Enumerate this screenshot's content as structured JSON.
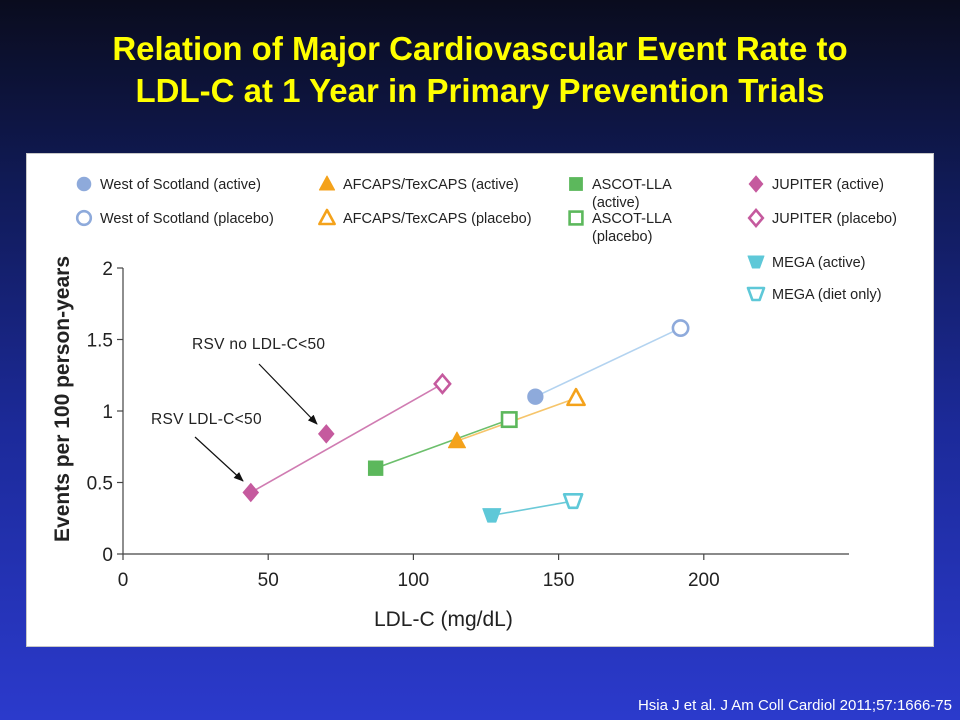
{
  "slide": {
    "title_line1": "Relation of Major Cardiovascular Event Rate to",
    "title_line2": "LDL-C at 1 Year in Primary Prevention Trials",
    "citation": "Hsia J et al. J Am Coll Cardiol 2011;57:1666-75"
  },
  "chart_data": {
    "type": "scatter",
    "xlabel": "LDL-C (mg/dL)",
    "ylabel": "Events per 100 person-years",
    "xlim": [
      0,
      250
    ],
    "ylim": [
      0,
      2
    ],
    "xticks": [
      0,
      50,
      100,
      150,
      200
    ],
    "yticks": [
      0,
      0.5,
      1,
      1.5,
      2
    ],
    "ytick_labels": [
      "0",
      "0.5",
      "1",
      "1.5",
      "2"
    ],
    "grid": false,
    "legend_position": "top",
    "series": [
      {
        "name": "West of Scotland (active)",
        "marker": "circle",
        "filled": true,
        "color": "#8eaadb",
        "x": [
          142
        ],
        "y": [
          1.1
        ]
      },
      {
        "name": "West of Scotland (placebo)",
        "marker": "circle",
        "filled": false,
        "color": "#8eaadb",
        "x": [
          192
        ],
        "y": [
          1.58
        ]
      },
      {
        "name": "AFCAPS/TexCAPS (active)",
        "marker": "triangle",
        "filled": true,
        "color": "#f4a21b",
        "x": [
          115
        ],
        "y": [
          0.79
        ]
      },
      {
        "name": "AFCAPS/TexCAPS (placebo)",
        "marker": "triangle",
        "filled": false,
        "color": "#f4a21b",
        "x": [
          156
        ],
        "y": [
          1.09
        ]
      },
      {
        "name": "ASCOT-LLA (active)",
        "marker": "square",
        "filled": true,
        "color": "#5cb85c",
        "x": [
          87
        ],
        "y": [
          0.6
        ]
      },
      {
        "name": "ASCOT-LLA (placebo)",
        "marker": "square",
        "filled": false,
        "color": "#5cb85c",
        "x": [
          133
        ],
        "y": [
          0.94
        ]
      },
      {
        "name": "JUPITER (active)",
        "marker": "diamond",
        "filled": true,
        "color": "#c55a9e",
        "x": [
          44,
          70
        ],
        "y": [
          0.43,
          0.84
        ]
      },
      {
        "name": "JUPITER (placebo)",
        "marker": "diamond",
        "filled": false,
        "color": "#c55a9e",
        "x": [
          110
        ],
        "y": [
          1.19
        ]
      },
      {
        "name": "MEGA (active)",
        "marker": "inv-trapezoid",
        "filled": true,
        "color": "#5ec8d8",
        "x": [
          127
        ],
        "y": [
          0.27
        ]
      },
      {
        "name": "MEGA (diet only)",
        "marker": "inv-trapezoid",
        "filled": false,
        "color": "#5ec8d8",
        "x": [
          155
        ],
        "y": [
          0.37
        ]
      }
    ],
    "connectors": [
      {
        "from": [
          142,
          1.1
        ],
        "to": [
          192,
          1.58
        ],
        "color": "#b3d3f0"
      },
      {
        "from": [
          115,
          0.79
        ],
        "to": [
          156,
          1.09
        ],
        "color": "#f6c56b"
      },
      {
        "from": [
          87,
          0.6
        ],
        "to": [
          133,
          0.94
        ],
        "color": "#6cbf6c"
      },
      {
        "from": [
          44,
          0.43
        ],
        "to": [
          110,
          1.19
        ],
        "color": "#d07cb2"
      },
      {
        "from": [
          127,
          0.27
        ],
        "to": [
          155,
          0.37
        ],
        "color": "#6ccad8"
      }
    ],
    "annotations": [
      {
        "text": "RSV no LDL-C<50",
        "points_to": [
          70,
          0.84
        ]
      },
      {
        "text": "RSV LDL-C<50",
        "points_to": [
          44,
          0.43
        ]
      }
    ]
  }
}
